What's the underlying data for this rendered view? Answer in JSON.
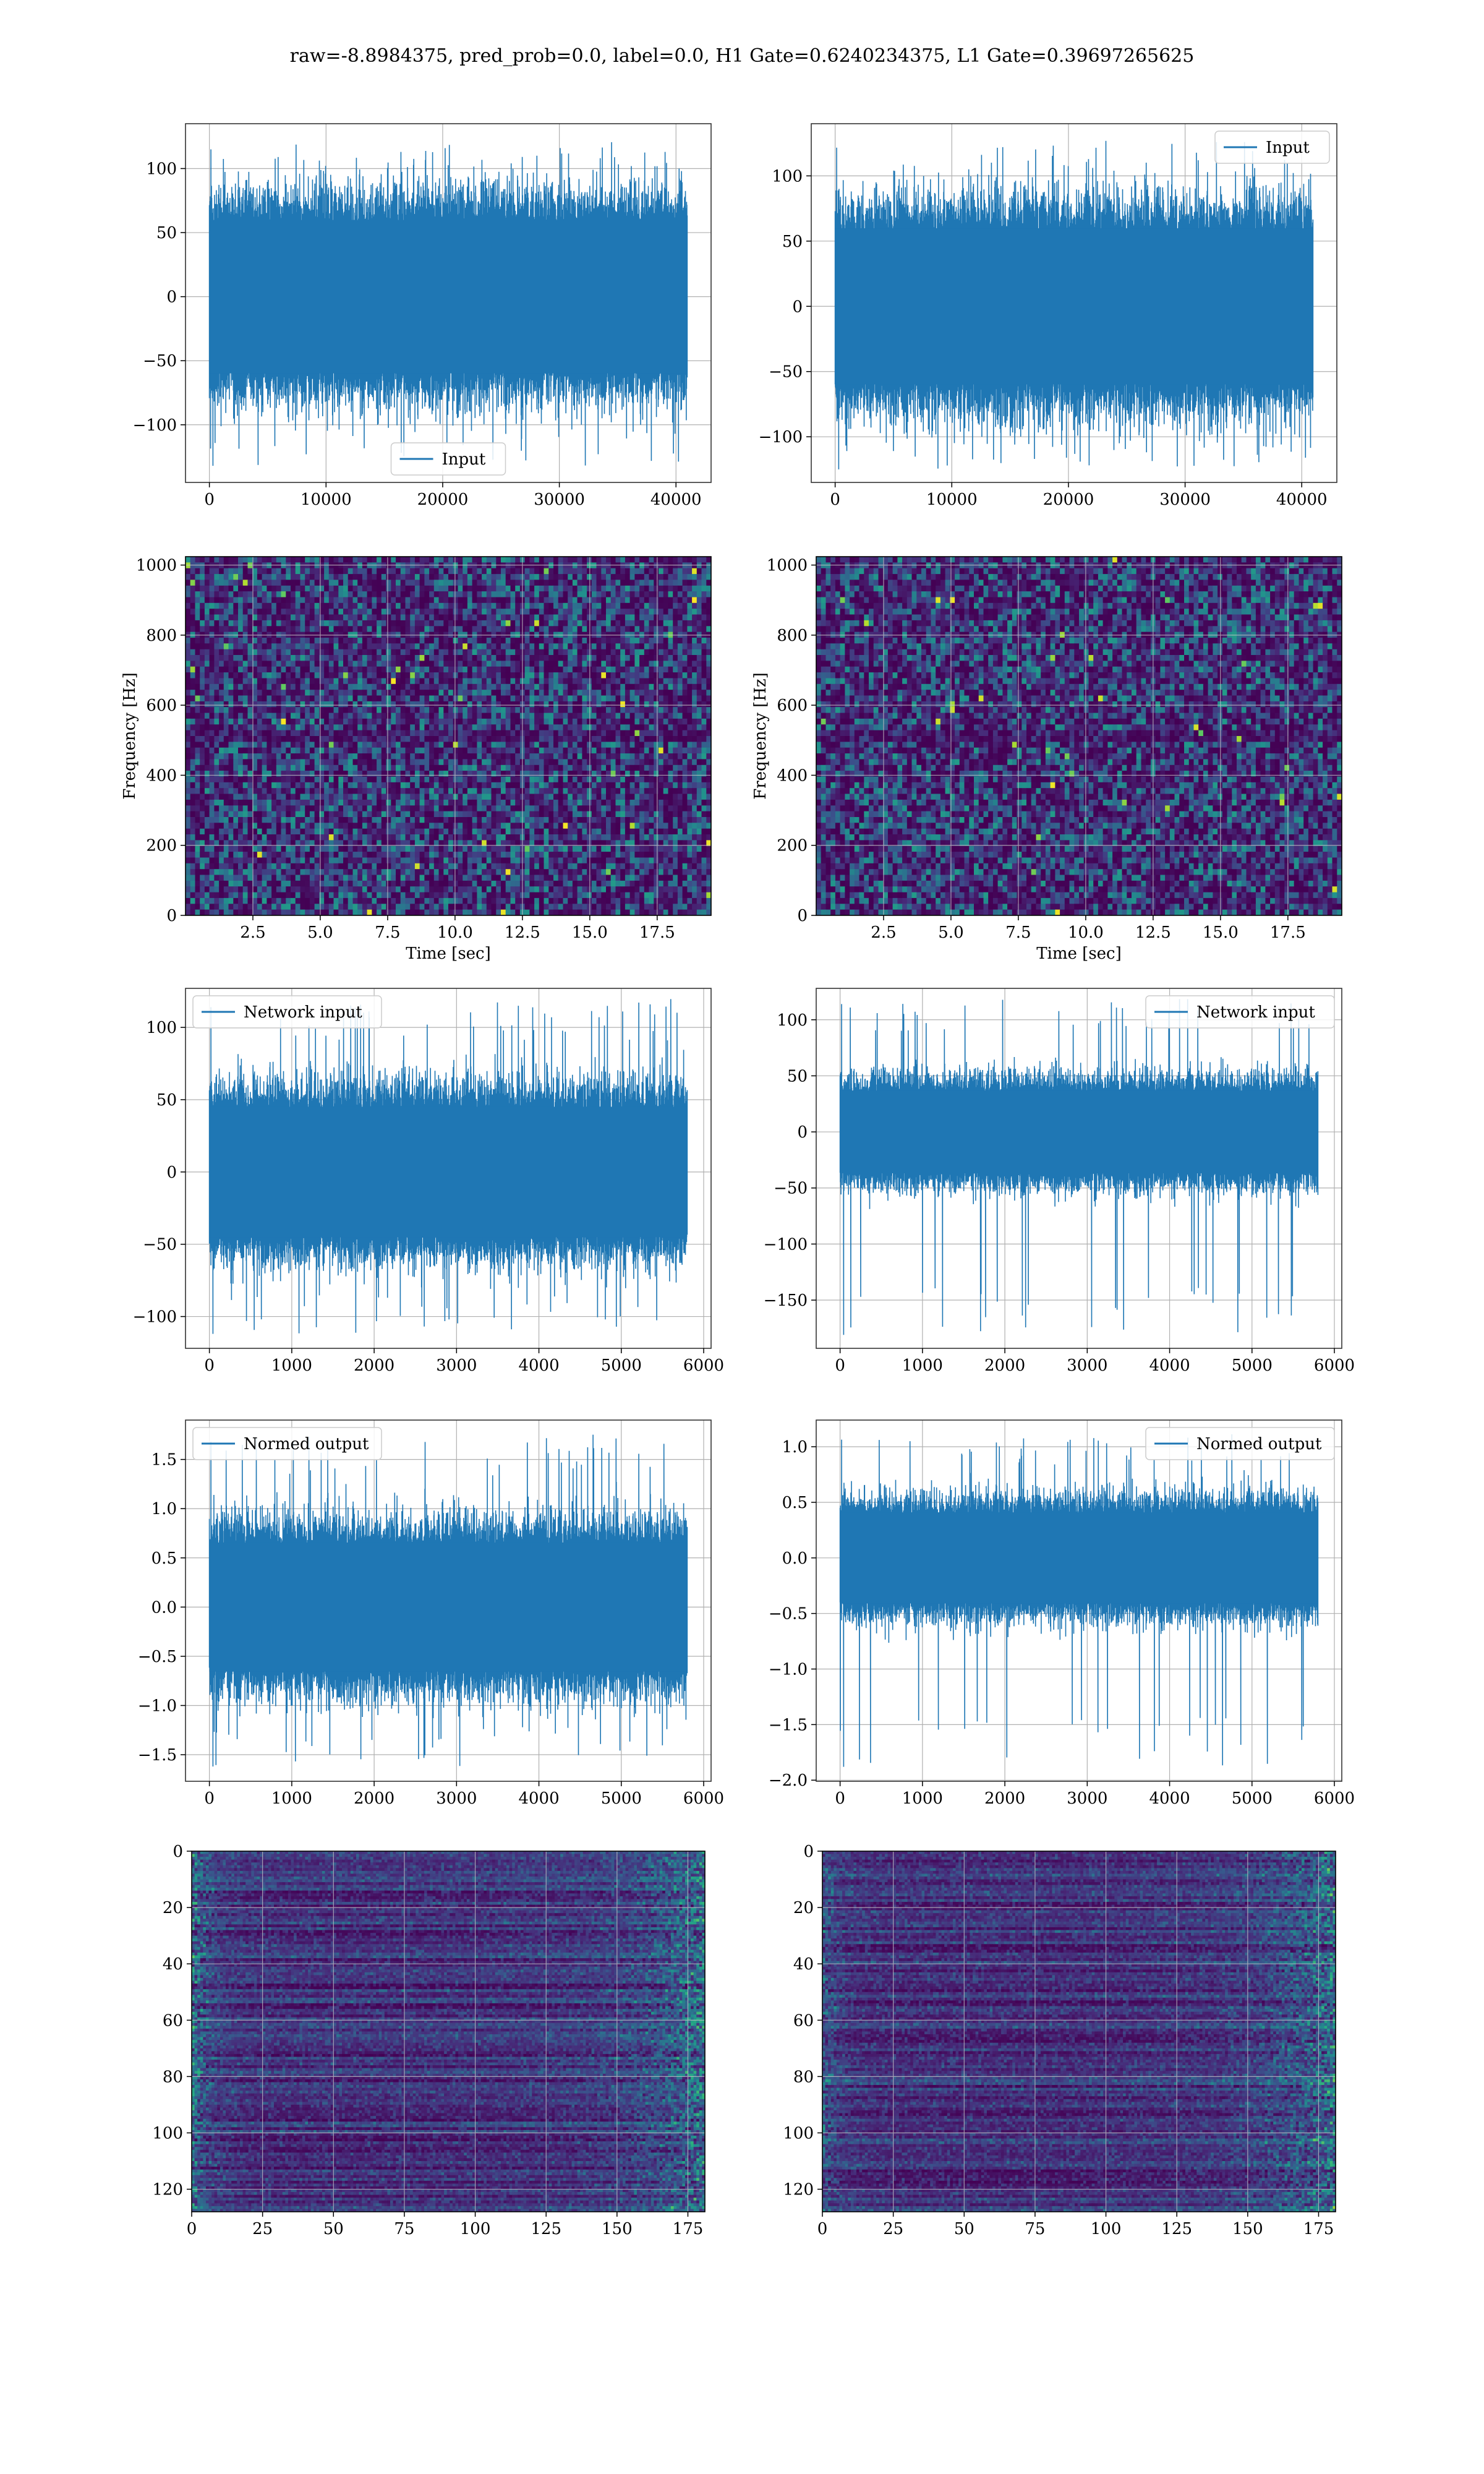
{
  "suptitle": "raw=-8.8984375, pred_prob=0.0, label=0.0, H1 Gate=0.6240234375, L1 Gate=0.39697265625",
  "colors": {
    "line": "#1f77b4",
    "grid": "#b0b0b0",
    "viridis_dark": "#440154"
  },
  "chart_data": [
    {
      "id": "input-h1",
      "type": "line",
      "xlim": [
        -2048,
        43008
      ],
      "ylim": [
        -145,
        135
      ],
      "xticks": [
        0,
        10000,
        20000,
        30000,
        40000
      ],
      "yticks": [
        -100,
        -50,
        0,
        50,
        100
      ],
      "xtick_labels": [
        "0",
        "10000",
        "20000",
        "30000",
        "40000"
      ],
      "ytick_labels": [
        "−100",
        "−50",
        "0",
        "50",
        "100"
      ],
      "legend": "Input",
      "legend_loc": "lower center",
      "series": [
        {
          "name": "Input",
          "n": 40960,
          "band": [
            -73,
            73
          ],
          "range": [
            -132,
            121
          ]
        }
      ]
    },
    {
      "id": "input-l1",
      "type": "line",
      "xlim": [
        -2048,
        43008
      ],
      "ylim": [
        -135,
        140
      ],
      "xticks": [
        0,
        10000,
        20000,
        30000,
        40000
      ],
      "yticks": [
        -100,
        -50,
        0,
        50,
        100
      ],
      "xtick_labels": [
        "0",
        "10000",
        "20000",
        "30000",
        "40000"
      ],
      "ytick_labels": [
        "−100",
        "−50",
        "0",
        "50",
        "100"
      ],
      "legend": "Input",
      "legend_loc": "upper right",
      "series": [
        {
          "name": "Input",
          "n": 40960,
          "band": [
            -73,
            73
          ],
          "range": [
            -125,
            128
          ]
        }
      ]
    },
    {
      "id": "spec-h1",
      "type": "heatmap",
      "xlim": [
        0,
        19.5
      ],
      "ylim": [
        0,
        1024
      ],
      "xticks": [
        2.5,
        5,
        7.5,
        10,
        12.5,
        15,
        17.5
      ],
      "yticks": [
        0,
        200,
        400,
        600,
        800,
        1000
      ],
      "xtick_labels": [
        "2.5",
        "5.0",
        "7.5",
        "10.0",
        "12.5",
        "15.0",
        "17.5"
      ],
      "ytick_labels": [
        "0",
        "200",
        "400",
        "600",
        "800",
        "1000"
      ],
      "xlabel": "Time [sec]",
      "ylabel": "Frequency [Hz]"
    },
    {
      "id": "spec-l1",
      "type": "heatmap",
      "xlim": [
        0,
        19.5
      ],
      "ylim": [
        0,
        1024
      ],
      "xticks": [
        2.5,
        5,
        7.5,
        10,
        12.5,
        15,
        17.5
      ],
      "yticks": [
        0,
        200,
        400,
        600,
        800,
        1000
      ],
      "xtick_labels": [
        "2.5",
        "5.0",
        "7.5",
        "10.0",
        "12.5",
        "15.0",
        "17.5"
      ],
      "ytick_labels": [
        "0",
        "200",
        "400",
        "600",
        "800",
        "1000"
      ],
      "xlabel": "Time [sec]",
      "ylabel": "Frequency [Hz]"
    },
    {
      "id": "netin-h1",
      "type": "line",
      "xlim": [
        -290,
        6090
      ],
      "ylim": [
        -122,
        127
      ],
      "xticks": [
        0,
        1000,
        2000,
        3000,
        4000,
        5000,
        6000
      ],
      "yticks": [
        -100,
        -50,
        0,
        50,
        100
      ],
      "xtick_labels": [
        "0",
        "1000",
        "2000",
        "3000",
        "4000",
        "5000",
        "6000"
      ],
      "ytick_labels": [
        "−100",
        "−50",
        "0",
        "50",
        "100"
      ],
      "legend": "Network input",
      "legend_loc": "upper left",
      "series": [
        {
          "name": "Network input",
          "n": 5800,
          "band": [
            -55,
            55
          ],
          "range": [
            -112,
            120
          ]
        }
      ]
    },
    {
      "id": "netin-l1",
      "type": "line",
      "xlim": [
        -290,
        6090
      ],
      "ylim": [
        -193,
        128
      ],
      "xticks": [
        0,
        1000,
        2000,
        3000,
        4000,
        5000,
        6000
      ],
      "yticks": [
        -150,
        -100,
        -50,
        0,
        50,
        100
      ],
      "xtick_labels": [
        "0",
        "1000",
        "2000",
        "3000",
        "4000",
        "5000",
        "6000"
      ],
      "ytick_labels": [
        "−150",
        "−100",
        "−50",
        "0",
        "50",
        "100"
      ],
      "legend": "Network input",
      "legend_loc": "upper right",
      "series": [
        {
          "name": "Network input",
          "n": 5800,
          "band": [
            -45,
            45
          ],
          "range": [
            -181,
            120
          ]
        }
      ]
    },
    {
      "id": "norm-h1",
      "type": "line",
      "xlim": [
        -290,
        6090
      ],
      "ylim": [
        -1.77,
        1.9
      ],
      "xticks": [
        0,
        1000,
        2000,
        3000,
        4000,
        5000,
        6000
      ],
      "yticks": [
        -1.5,
        -1.0,
        -0.5,
        0.0,
        0.5,
        1.0,
        1.5
      ],
      "xtick_labels": [
        "0",
        "1000",
        "2000",
        "3000",
        "4000",
        "5000",
        "6000"
      ],
      "ytick_labels": [
        "−1.5",
        "−1.0",
        "−0.5",
        "0.0",
        "0.5",
        "1.0",
        "1.5"
      ],
      "legend": "Normed output",
      "legend_loc": "upper left",
      "series": [
        {
          "name": "Normed output",
          "n": 5800,
          "band": [
            -0.8,
            0.8
          ],
          "range": [
            -1.62,
            1.77
          ]
        }
      ]
    },
    {
      "id": "norm-l1",
      "type": "line",
      "xlim": [
        -290,
        6090
      ],
      "ylim": [
        -2.01,
        1.24
      ],
      "xticks": [
        0,
        1000,
        2000,
        3000,
        4000,
        5000,
        6000
      ],
      "yticks": [
        -2.0,
        -1.5,
        -1.0,
        -0.5,
        0.0,
        0.5,
        1.0
      ],
      "xtick_labels": [
        "0",
        "1000",
        "2000",
        "3000",
        "4000",
        "5000",
        "6000"
      ],
      "ytick_labels": [
        "−2.0",
        "−1.5",
        "−1.0",
        "−0.5",
        "0.0",
        "0.5",
        "1.0"
      ],
      "legend": "Normed output",
      "legend_loc": "upper right",
      "series": [
        {
          "name": "Normed output",
          "n": 5800,
          "band": [
            -0.5,
            0.5
          ],
          "range": [
            -1.88,
            1.12
          ]
        }
      ]
    },
    {
      "id": "act-h1",
      "type": "heatmap",
      "xlim": [
        0,
        181
      ],
      "ylim": [
        128,
        0
      ],
      "xticks": [
        0,
        25,
        50,
        75,
        100,
        125,
        150,
        175
      ],
      "yticks": [
        0,
        20,
        40,
        60,
        80,
        100,
        120
      ],
      "xtick_labels": [
        "0",
        "25",
        "50",
        "75",
        "100",
        "125",
        "150",
        "175"
      ],
      "ytick_labels": [
        "0",
        "20",
        "40",
        "60",
        "80",
        "100",
        "120"
      ]
    },
    {
      "id": "act-l1",
      "type": "heatmap",
      "xlim": [
        0,
        181
      ],
      "ylim": [
        128,
        0
      ],
      "xticks": [
        0,
        25,
        50,
        75,
        100,
        125,
        150,
        175
      ],
      "yticks": [
        0,
        20,
        40,
        60,
        80,
        100,
        120
      ],
      "xtick_labels": [
        "0",
        "25",
        "50",
        "75",
        "100",
        "125",
        "150",
        "175"
      ],
      "ytick_labels": [
        "0",
        "20",
        "40",
        "60",
        "80",
        "100",
        "120"
      ]
    }
  ]
}
